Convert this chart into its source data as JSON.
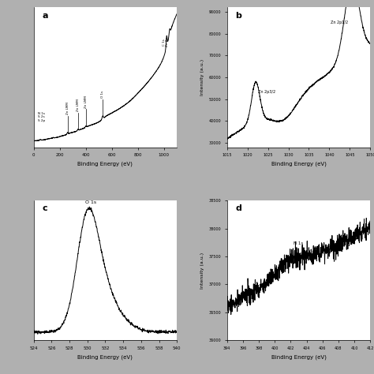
{
  "background_color": "#b0b0b0",
  "panel_bg": "#ffffff",
  "line_color": "#000000",
  "panel_a": {
    "label": "a",
    "xlabel": "Binding Energy (eV)",
    "xlim": [
      0,
      1100
    ],
    "ytick_labels": [
      "",
      "",
      "",
      "",
      "",
      ""
    ]
  },
  "panel_b": {
    "label": "b",
    "xlabel": "Binding Energy (eV)",
    "ylabel": "Intensity (a.u.)",
    "xlim": [
      1015,
      1050
    ],
    "ylim": [
      28000,
      92000
    ],
    "yticks": [
      30000,
      40000,
      50000,
      60000,
      70000,
      80000,
      90000
    ],
    "ytick_labels": [
      "30000",
      "40000",
      "50000",
      "60000",
      "70000",
      "80000",
      "90000"
    ]
  },
  "panel_c": {
    "label": "c",
    "xlabel": "Binding Energy (eV)",
    "xlim": [
      524,
      540
    ]
  },
  "panel_d": {
    "label": "d",
    "xlabel": "Binding Energy (eV)",
    "ylabel": "Intensity (a.u.)",
    "xlim": [
      394,
      412
    ],
    "ylim": [
      36000,
      38500
    ],
    "yticks": [
      36000,
      36500,
      37000,
      37500,
      38000,
      38500
    ],
    "ytick_labels": [
      "36000",
      "36500",
      "37000",
      "37500",
      "38000",
      "38500"
    ]
  }
}
